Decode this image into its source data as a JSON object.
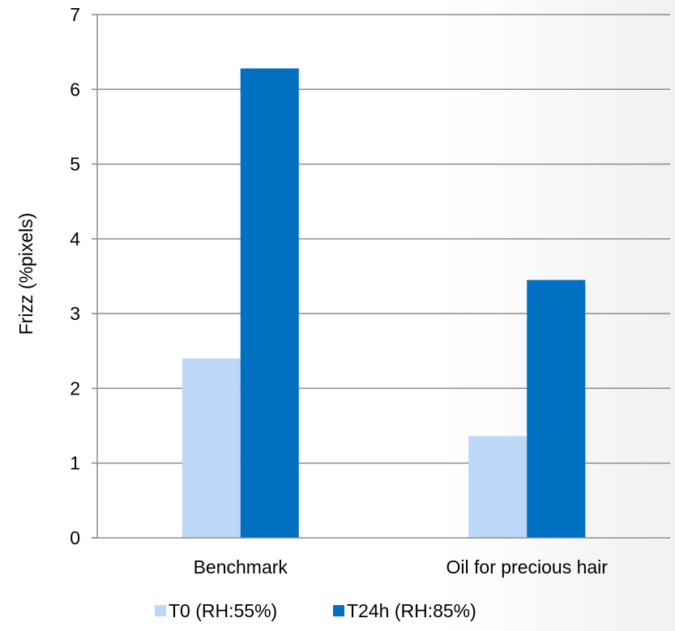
{
  "chart_data": {
    "type": "bar",
    "title": "",
    "xlabel": "",
    "ylabel": "Frizz (%pixels)",
    "ylim": [
      0,
      7
    ],
    "yticks": [
      0,
      1,
      2,
      3,
      4,
      5,
      6,
      7
    ],
    "categories": [
      "Benchmark",
      "Oil for precious hair"
    ],
    "series": [
      {
        "name": "T0 (RH:55%)",
        "values": [
          2.4,
          1.36
        ],
        "color": "#bdd7f7"
      },
      {
        "name": "T24h (RH:85%)",
        "values": [
          6.28,
          3.45
        ],
        "color": "#0070c0"
      }
    ],
    "grid": true,
    "legend": "bottom"
  }
}
